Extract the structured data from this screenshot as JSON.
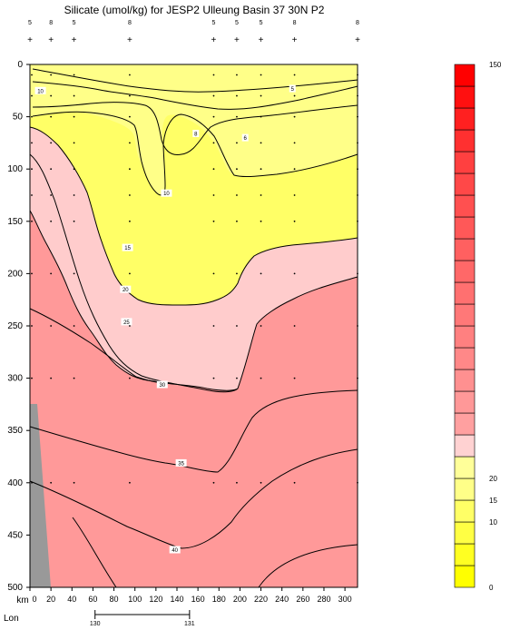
{
  "chart_data": {
    "type": "contour",
    "title": "Silicate (umol/kg) for JESP2 Ulleung Basin 37 30N P2",
    "x_axis": {
      "label": "km",
      "range": [
        0,
        312
      ],
      "ticks": [
        0,
        20,
        40,
        60,
        80,
        100,
        120,
        140,
        160,
        180,
        200,
        220,
        240,
        260,
        280,
        300
      ]
    },
    "y_axis": {
      "range": [
        0,
        500
      ],
      "inverted": true,
      "ticks": [
        0,
        50,
        100,
        150,
        200,
        250,
        300,
        350,
        400,
        450,
        500
      ]
    },
    "lon_axis": {
      "label": "Lon",
      "ticks": [
        {
          "km": 62,
          "label": "130"
        },
        {
          "km": 152,
          "label": "131"
        }
      ]
    },
    "stations": [
      {
        "km": 0,
        "label": "5"
      },
      {
        "km": 20,
        "label": "8"
      },
      {
        "km": 42,
        "label": "5"
      },
      {
        "km": 95,
        "label": "8"
      },
      {
        "km": 175,
        "label": "5"
      },
      {
        "km": 197,
        "label": "5"
      },
      {
        "km": 220,
        "label": "5"
      },
      {
        "km": 252,
        "label": "8"
      },
      {
        "km": 312,
        "label": "8"
      }
    ],
    "contour_labels": [
      {
        "text": "10",
        "km": 10,
        "depth": 25
      },
      {
        "text": "5",
        "km": 250,
        "depth": 23
      },
      {
        "text": "8",
        "km": 158,
        "depth": 66
      },
      {
        "text": "6",
        "km": 205,
        "depth": 70
      },
      {
        "text": "10",
        "km": 130,
        "depth": 123
      },
      {
        "text": "15",
        "km": 93,
        "depth": 175
      },
      {
        "text": "20",
        "km": 91,
        "depth": 215
      },
      {
        "text": "25",
        "km": 92,
        "depth": 246
      },
      {
        "text": "30",
        "km": 126,
        "depth": 306
      },
      {
        "text": "35",
        "km": 144,
        "depth": 381
      },
      {
        "text": "40",
        "km": 138,
        "depth": 464
      }
    ],
    "colorbar": {
      "min": 0,
      "max": 150,
      "labels": [
        {
          "value": 0,
          "label": "0"
        },
        {
          "value": 10,
          "label": "10"
        },
        {
          "value": 15,
          "label": "15"
        },
        {
          "value": 20,
          "label": "20"
        },
        {
          "value": 150,
          "label": "150"
        }
      ],
      "colors": [
        "#ffff00",
        "#ffff22",
        "#ffff44",
        "#ffff66",
        "#ffff88",
        "#ffff99",
        "#ffd2d2",
        "#ffa0a0",
        "#ff9898",
        "#ff9090",
        "#ff8888",
        "#ff8080",
        "#ff7878",
        "#ff7070",
        "#ff6868",
        "#ff6060",
        "#ff5858",
        "#ff5050",
        "#ff4848",
        "#ff4040",
        "#ff3030",
        "#ff2020",
        "#ff1010",
        "#ff0000"
      ]
    },
    "region_colors": {
      "yellow": "#ffff66",
      "light_yellow": "#ffff88",
      "pink": "#ffcccc",
      "salmon": "#ff9999",
      "topography": "#999999"
    }
  }
}
